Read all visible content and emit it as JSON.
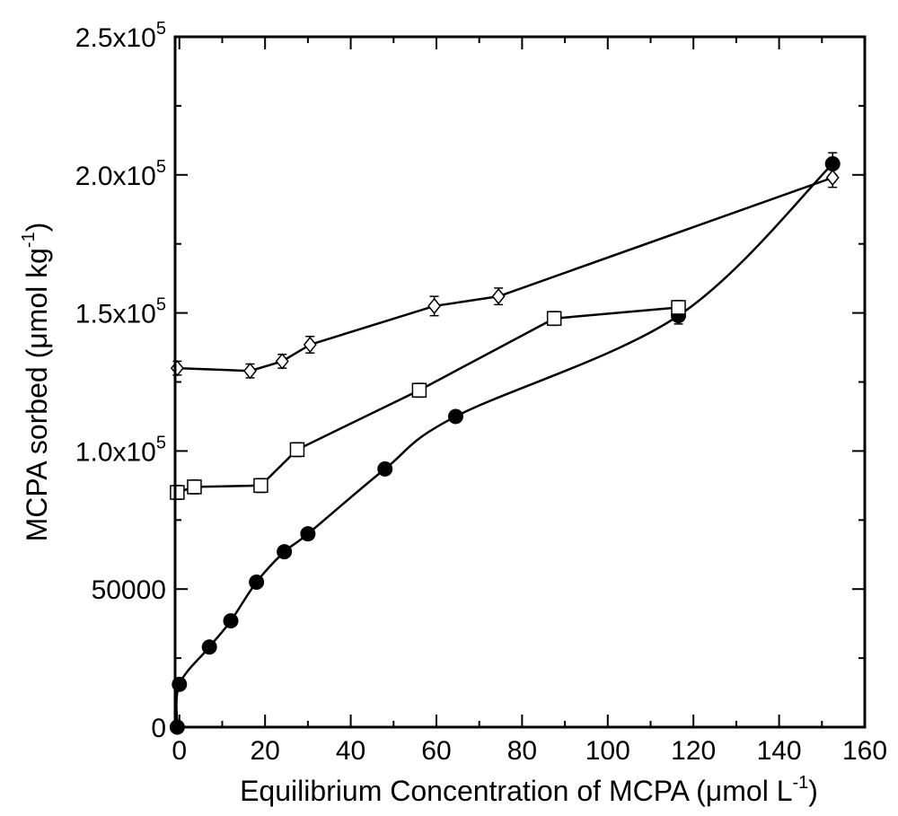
{
  "chart_data": {
    "type": "scatter",
    "xlabel": "Equilibrium Concentration of MCPA (μmol L-1)",
    "xlabel_parts": {
      "main": "Equilibrium Concentration of MCPA (μmol L",
      "sup": "-1",
      "close": ")"
    },
    "ylabel": "MCPA sorbed (μmol kg-1)",
    "ylabel_parts": {
      "main": "MCPA sorbed (μmol kg",
      "sup": "-1",
      "close": ")"
    },
    "xlim": [
      -1,
      160
    ],
    "ylim": [
      0,
      250000
    ],
    "x_ticks": [
      {
        "value": 0,
        "label": "0"
      },
      {
        "value": 20,
        "label": "20"
      },
      {
        "value": 40,
        "label": "40"
      },
      {
        "value": 60,
        "label": "60"
      },
      {
        "value": 80,
        "label": "80"
      },
      {
        "value": 100,
        "label": "100"
      },
      {
        "value": 120,
        "label": "120"
      },
      {
        "value": 140,
        "label": "140"
      },
      {
        "value": 160,
        "label": "160"
      }
    ],
    "y_ticks": [
      {
        "value": 0,
        "label": "0"
      },
      {
        "value": 50000,
        "label": "50000"
      },
      {
        "value": 100000,
        "base": "1.0x10",
        "exp": "5"
      },
      {
        "value": 150000,
        "base": "1.5x10",
        "exp": "5"
      },
      {
        "value": 200000,
        "base": "2.0x10",
        "exp": "5"
      },
      {
        "value": 250000,
        "base": "2.5x10",
        "exp": "5"
      }
    ],
    "grid": false,
    "series": [
      {
        "marker": "circle-filled",
        "color": "#000000",
        "points": [
          {
            "x": -0.5,
            "y": 0
          },
          {
            "x": 0,
            "y": 15500
          },
          {
            "x": 7,
            "y": 29000
          },
          {
            "x": 12,
            "y": 38500
          },
          {
            "x": 18,
            "y": 52500
          },
          {
            "x": 24.5,
            "y": 63500
          },
          {
            "x": 30,
            "y": 70000
          },
          {
            "x": 48,
            "y": 93500
          },
          {
            "x": 64.5,
            "y": 112500
          },
          {
            "x": 116.5,
            "y": 149000,
            "err": 3000
          },
          {
            "x": 152.5,
            "y": 204000,
            "err": 4000
          }
        ]
      },
      {
        "marker": "square-open",
        "color": "#000000",
        "points": [
          {
            "x": -0.5,
            "y": 85000,
            "err": 2500
          },
          {
            "x": 3.5,
            "y": 87000,
            "err": 2500
          },
          {
            "x": 19,
            "y": 87500,
            "err": 2500
          },
          {
            "x": 27.5,
            "y": 100500,
            "err": 2500
          },
          {
            "x": 56,
            "y": 122000,
            "err": 2500
          },
          {
            "x": 87.5,
            "y": 148000,
            "err": 2500
          },
          {
            "x": 116.5,
            "y": 152000,
            "err": 2500
          }
        ]
      },
      {
        "marker": "diamond-open",
        "color": "#000000",
        "points": [
          {
            "x": -0.5,
            "y": 130000,
            "err": 2500
          },
          {
            "x": 16.5,
            "y": 129000,
            "err": 2500
          },
          {
            "x": 24,
            "y": 132500,
            "err": 2500
          },
          {
            "x": 30.5,
            "y": 138500,
            "err": 3000
          },
          {
            "x": 59.5,
            "y": 152500,
            "err": 3500
          },
          {
            "x": 74.5,
            "y": 156000,
            "err": 3000
          },
          {
            "x": 152.5,
            "y": 199000,
            "err": 3500
          }
        ]
      }
    ]
  }
}
